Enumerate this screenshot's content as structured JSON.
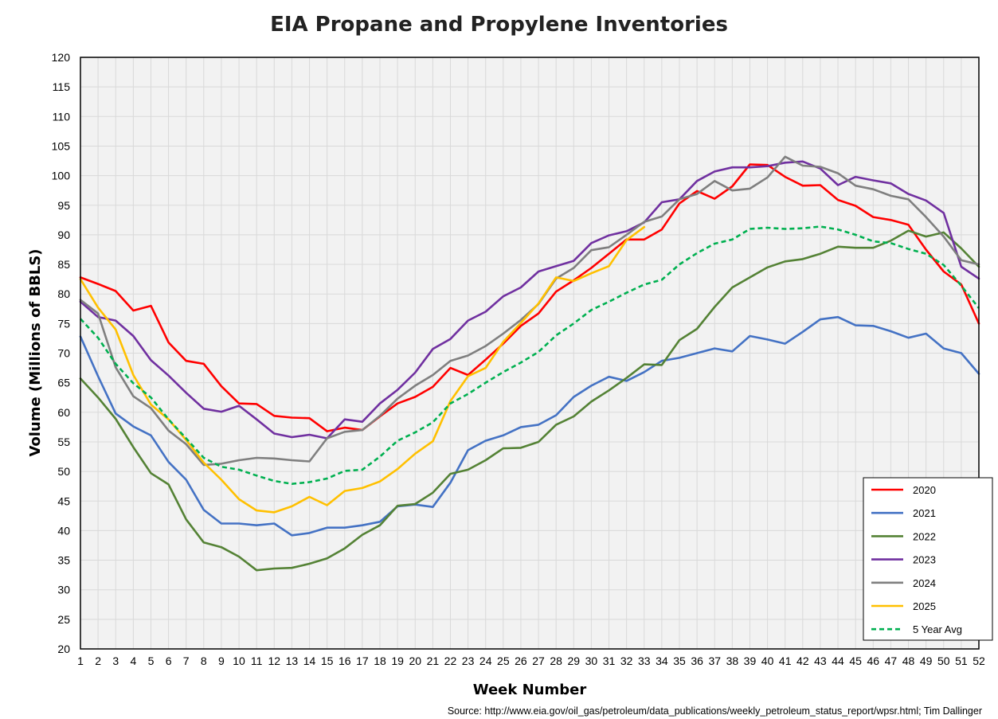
{
  "chart_data": {
    "type": "line",
    "title": "EIA Propane and Propylene Inventories",
    "xlabel": "Week Number",
    "ylabel": "Volume (Millions of BBLS)",
    "xlim": [
      1,
      52
    ],
    "ylim": [
      20,
      120
    ],
    "ytick_step": 5,
    "grid": true,
    "legend_position": "bottom-right",
    "source": "Source: http://www.eia.gov/oil_gas/petroleum/data_publications/weekly_petroleum_status_report/wpsr.html; Tim Dallinger",
    "x": [
      1,
      2,
      3,
      4,
      5,
      6,
      7,
      8,
      9,
      10,
      11,
      12,
      13,
      14,
      15,
      16,
      17,
      18,
      19,
      20,
      21,
      22,
      23,
      24,
      25,
      26,
      27,
      28,
      29,
      30,
      31,
      32,
      33,
      34,
      35,
      36,
      37,
      38,
      39,
      40,
      41,
      42,
      43,
      44,
      45,
      46,
      47,
      48,
      49,
      50,
      51,
      52
    ],
    "series": [
      {
        "name": "2020",
        "color": "#ff0000",
        "dashed": false,
        "values": [
          82.8,
          81.7,
          80.5,
          77.2,
          78,
          71.8,
          68.7,
          68.2,
          64.4,
          61.5,
          61.4,
          59.4,
          59.1,
          59,
          56.8,
          57.4,
          57,
          59.3,
          61.5,
          62.6,
          64.3,
          67.5,
          66.3,
          68.9,
          71.6,
          74.6,
          76.7,
          80.4,
          82.3,
          84.4,
          86.8,
          89.2,
          89.2,
          90.9,
          95.3,
          97.4,
          96.1,
          98.2,
          101.9,
          101.8,
          99.8,
          98.3,
          98.4,
          95.9,
          94.9,
          93,
          92.5,
          91.7,
          87.5,
          83.8,
          81.6,
          75
        ]
      },
      {
        "name": "2021",
        "color": "#4472c4",
        "dashed": false,
        "values": [
          72.8,
          66.1,
          59.8,
          57.6,
          56.1,
          51.6,
          48.6,
          43.5,
          41.2,
          41.2,
          40.9,
          41.2,
          39.2,
          39.6,
          40.5,
          40.5,
          40.9,
          41.5,
          44.1,
          44.4,
          44,
          48.1,
          53.6,
          55.2,
          56.1,
          57.5,
          57.9,
          59.5,
          62.6,
          64.5,
          66,
          65.3,
          66.8,
          68.7,
          69.2,
          70,
          70.8,
          70.3,
          72.9,
          72.3,
          71.6,
          73.6,
          75.7,
          76.1,
          74.7,
          74.6,
          73.7,
          72.6,
          73.3,
          70.8,
          70,
          66.5
        ]
      },
      {
        "name": "2022",
        "color": "#548235",
        "dashed": false,
        "values": [
          65.7,
          62.5,
          58.9,
          54.1,
          49.7,
          47.8,
          41.9,
          38,
          37.2,
          35.6,
          33.3,
          33.6,
          33.7,
          34.4,
          35.3,
          37,
          39.3,
          40.9,
          44.2,
          44.5,
          46.4,
          49.6,
          50.3,
          51.9,
          53.9,
          54,
          55,
          57.9,
          59.3,
          61.8,
          63.7,
          65.8,
          68.1,
          68,
          72.2,
          74.1,
          77.8,
          81.1,
          82.8,
          84.5,
          85.5,
          85.9,
          86.8,
          88,
          87.8,
          87.8,
          89,
          90.7,
          89.7,
          90.4,
          87.7,
          84.6
        ]
      },
      {
        "name": "2023",
        "color": "#7030a0",
        "dashed": false,
        "values": [
          78.7,
          76.1,
          75.5,
          72.9,
          68.8,
          66.2,
          63.3,
          60.6,
          60.1,
          61.1,
          58.8,
          56.4,
          55.8,
          56.2,
          55.6,
          58.8,
          58.4,
          61.5,
          63.8,
          66.7,
          70.7,
          72.4,
          75.5,
          77,
          79.6,
          81.1,
          83.8,
          84.7,
          85.6,
          88.6,
          89.9,
          90.6,
          92.1,
          95.5,
          96,
          99.1,
          100.7,
          101.4,
          101.4,
          101.6,
          102.2,
          102.4,
          101.2,
          98.4,
          99.8,
          99.2,
          98.7,
          96.9,
          95.8,
          93.7,
          84.6,
          82.6
        ]
      },
      {
        "name": "2024",
        "color": "#7f7f7f",
        "dashed": false,
        "values": [
          79,
          76.7,
          67.6,
          62.7,
          60.7,
          56.9,
          54.6,
          51.1,
          51.3,
          51.9,
          52.3,
          52.2,
          51.9,
          51.7,
          55.6,
          56.7,
          57,
          59.4,
          62.3,
          64.5,
          66.3,
          68.7,
          69.6,
          71.2,
          73.3,
          75.6,
          78.3,
          82.6,
          84.4,
          87.4,
          87.9,
          90,
          92.2,
          93.1,
          96,
          96.9,
          99.1,
          97.5,
          97.8,
          99.7,
          103.2,
          101.7,
          101.5,
          100.4,
          98.3,
          97.7,
          96.6,
          96,
          93,
          89.7,
          85.7,
          85
        ]
      },
      {
        "name": "2025",
        "color": "#ffc000",
        "dashed": false,
        "values": [
          82.5,
          77.7,
          74,
          66.3,
          61.3,
          58.8,
          55.3,
          51.5,
          48.6,
          45.3,
          43.4,
          43.1,
          44.1,
          45.7,
          44.3,
          46.7,
          47.2,
          48.3,
          50.4,
          53,
          55.1,
          61.9,
          66.1,
          67.5,
          71.9,
          75.1,
          78.4,
          82.8,
          82.2,
          83.5,
          84.7,
          89.1,
          91.3,
          null,
          null,
          null,
          null,
          null,
          null,
          null,
          null,
          null,
          null,
          null,
          null,
          null,
          null,
          null,
          null,
          null,
          null,
          null
        ]
      },
      {
        "name": "5 Year Avg",
        "color": "#00b050",
        "dashed": true,
        "values": [
          75.8,
          72.6,
          68.2,
          64.9,
          62.5,
          58.8,
          55.6,
          52.3,
          50.8,
          50.3,
          49.3,
          48.4,
          47.9,
          48.2,
          48.8,
          50.1,
          50.3,
          52.5,
          55.2,
          56.6,
          58.3,
          61.5,
          63.1,
          65,
          66.8,
          68.4,
          70.2,
          73,
          75,
          77.3,
          78.7,
          80.2,
          81.6,
          82.4,
          85,
          86.9,
          88.5,
          89.2,
          91,
          91.2,
          91,
          91.1,
          91.4,
          90.9,
          90,
          88.9,
          88.6,
          87.6,
          86.8,
          84.9,
          81.4,
          77.6
        ]
      }
    ]
  }
}
